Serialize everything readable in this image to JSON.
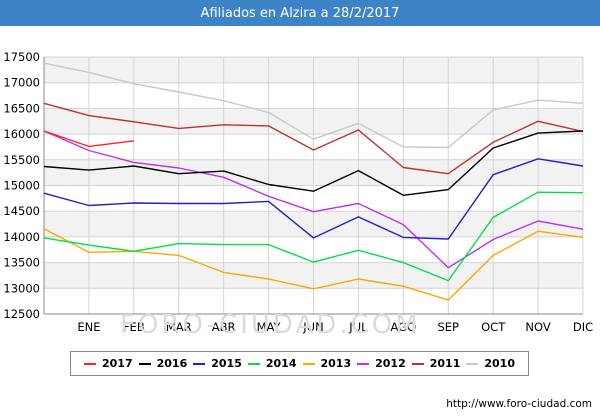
{
  "header": {
    "title": "Afiliados en Alzira a 28/2/2017"
  },
  "watermark": "FORO-CIUDAD.COM",
  "source": "http://www.foro-ciudad.com",
  "chart_data": {
    "type": "line",
    "title": "Afiliados en Alzira a 28/2/2017",
    "xlabel": "",
    "ylabel": "",
    "categories": [
      "",
      "ENE",
      "FEB",
      "MAR",
      "ABR",
      "MAY",
      "JUN",
      "JUL",
      "AGO",
      "SEP",
      "OCT",
      "NOV",
      "DIC"
    ],
    "ylim": [
      12500,
      17500
    ],
    "yticks": [
      12500,
      13000,
      13500,
      14000,
      14500,
      15000,
      15500,
      16000,
      16500,
      17000,
      17500
    ],
    "grid": true,
    "legend_position": "bottom",
    "series": [
      {
        "name": "2017",
        "color": "#ff2020",
        "values": [
          16060,
          15760,
          15870,
          null,
          null,
          null,
          null,
          null,
          null,
          null,
          null,
          null,
          null
        ]
      },
      {
        "name": "2016",
        "color": "#000000",
        "values": [
          15370,
          15300,
          15380,
          15230,
          15280,
          15020,
          14890,
          15290,
          14810,
          14920,
          15730,
          16020,
          16060
        ]
      },
      {
        "name": "2015",
        "color": "#2020cc",
        "values": [
          14850,
          14610,
          14660,
          14650,
          14650,
          14690,
          13980,
          14390,
          13990,
          13960,
          15210,
          15520,
          15380
        ]
      },
      {
        "name": "2014",
        "color": "#00e040",
        "values": [
          13980,
          13840,
          13720,
          13870,
          13850,
          13850,
          13510,
          13740,
          13500,
          13150,
          14380,
          14870,
          14860
        ]
      },
      {
        "name": "2013",
        "color": "#ffa500",
        "values": [
          14160,
          13700,
          13720,
          13640,
          13310,
          13180,
          12990,
          13180,
          13040,
          12770,
          13640,
          14110,
          13990
        ]
      },
      {
        "name": "2012",
        "color": "#bb33ee",
        "values": [
          16060,
          15680,
          15450,
          15340,
          15160,
          14790,
          14490,
          14650,
          14240,
          13400,
          13950,
          14310,
          14150
        ]
      },
      {
        "name": "2011",
        "color": "#c03030",
        "values": [
          16600,
          16360,
          16240,
          16110,
          16180,
          16160,
          15690,
          16080,
          15350,
          15230,
          15840,
          16250,
          16050
        ]
      },
      {
        "name": "2010",
        "color": "#c8c8c8",
        "values": [
          17380,
          17200,
          16980,
          16820,
          16650,
          16420,
          15900,
          16210,
          15750,
          15740,
          16470,
          16660,
          16600
        ]
      }
    ]
  }
}
